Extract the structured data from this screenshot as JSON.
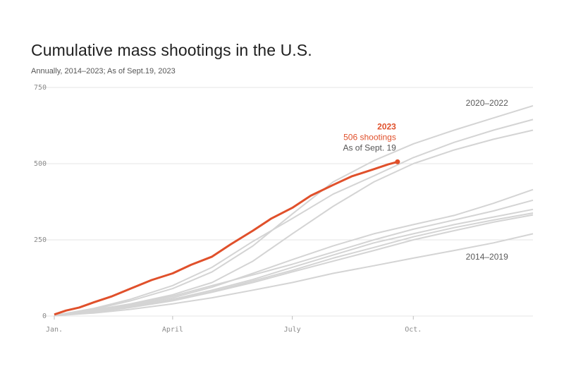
{
  "header": {
    "title": "Cumulative mass shootings in the U.S.",
    "subtitle": "Annually, 2014–2023; As of Sept.19, 2023"
  },
  "colors": {
    "highlight": "#e0502b",
    "background_series": "#d4d4d4",
    "gridline": "#e6e6e6"
  },
  "chart_data": {
    "type": "line",
    "x_unit": "day of year",
    "xlim": [
      1,
      365
    ],
    "ylim": [
      0,
      750
    ],
    "x_ticks": [
      {
        "label": "Jan.",
        "day": 1
      },
      {
        "label": "April",
        "day": 91
      },
      {
        "label": "July",
        "day": 182
      },
      {
        "label": "Oct.",
        "day": 274
      }
    ],
    "y_ticks": [
      0,
      250,
      500,
      750
    ],
    "grid": true,
    "group_labels": [
      {
        "text": "2020–2022",
        "day": 330,
        "value": 690
      },
      {
        "text": "2014–2019",
        "day": 330,
        "value": 185
      }
    ],
    "highlight_annotation": {
      "year": "2023",
      "count_text": "506 shootings",
      "asof_text": "As of Sept. 19"
    },
    "series": [
      {
        "name": "2023",
        "highlight": true,
        "points": [
          [
            1,
            5
          ],
          [
            10,
            18
          ],
          [
            20,
            28
          ],
          [
            31,
            45
          ],
          [
            45,
            65
          ],
          [
            59,
            90
          ],
          [
            75,
            118
          ],
          [
            91,
            140
          ],
          [
            105,
            168
          ],
          [
            121,
            195
          ],
          [
            135,
            235
          ],
          [
            152,
            280
          ],
          [
            166,
            320
          ],
          [
            182,
            355
          ],
          [
            196,
            395
          ],
          [
            213,
            430
          ],
          [
            227,
            458
          ],
          [
            244,
            482
          ],
          [
            255,
            498
          ],
          [
            262,
            506
          ]
        ]
      },
      {
        "points": [
          [
            1,
            2
          ],
          [
            31,
            22
          ],
          [
            59,
            50
          ],
          [
            91,
            90
          ],
          [
            121,
            145
          ],
          [
            152,
            230
          ],
          [
            182,
            335
          ],
          [
            213,
            440
          ],
          [
            244,
            510
          ],
          [
            274,
            565
          ],
          [
            305,
            610
          ],
          [
            335,
            650
          ],
          [
            365,
            690
          ]
        ]
      },
      {
        "points": [
          [
            1,
            2
          ],
          [
            31,
            25
          ],
          [
            59,
            55
          ],
          [
            91,
            100
          ],
          [
            121,
            160
          ],
          [
            152,
            245
          ],
          [
            182,
            320
          ],
          [
            213,
            400
          ],
          [
            244,
            460
          ],
          [
            274,
            520
          ],
          [
            305,
            570
          ],
          [
            335,
            610
          ],
          [
            365,
            645
          ]
        ]
      },
      {
        "points": [
          [
            1,
            2
          ],
          [
            31,
            20
          ],
          [
            59,
            40
          ],
          [
            91,
            70
          ],
          [
            121,
            110
          ],
          [
            152,
            180
          ],
          [
            182,
            270
          ],
          [
            213,
            360
          ],
          [
            244,
            440
          ],
          [
            274,
            500
          ],
          [
            305,
            545
          ],
          [
            335,
            580
          ],
          [
            365,
            610
          ]
        ]
      },
      {
        "points": [
          [
            1,
            1
          ],
          [
            31,
            15
          ],
          [
            59,
            35
          ],
          [
            91,
            60
          ],
          [
            121,
            95
          ],
          [
            152,
            140
          ],
          [
            182,
            185
          ],
          [
            213,
            230
          ],
          [
            244,
            270
          ],
          [
            274,
            300
          ],
          [
            305,
            330
          ],
          [
            335,
            370
          ],
          [
            365,
            415
          ]
        ]
      },
      {
        "points": [
          [
            1,
            1
          ],
          [
            31,
            18
          ],
          [
            59,
            38
          ],
          [
            91,
            65
          ],
          [
            121,
            100
          ],
          [
            152,
            135
          ],
          [
            182,
            170
          ],
          [
            213,
            210
          ],
          [
            244,
            250
          ],
          [
            274,
            285
          ],
          [
            305,
            315
          ],
          [
            335,
            345
          ],
          [
            365,
            380
          ]
        ]
      },
      {
        "points": [
          [
            1,
            1
          ],
          [
            31,
            16
          ],
          [
            59,
            32
          ],
          [
            91,
            55
          ],
          [
            121,
            85
          ],
          [
            152,
            120
          ],
          [
            182,
            160
          ],
          [
            213,
            200
          ],
          [
            244,
            240
          ],
          [
            274,
            270
          ],
          [
            305,
            300
          ],
          [
            335,
            325
          ],
          [
            365,
            350
          ]
        ]
      },
      {
        "points": [
          [
            1,
            1
          ],
          [
            31,
            14
          ],
          [
            59,
            30
          ],
          [
            91,
            52
          ],
          [
            121,
            80
          ],
          [
            152,
            115
          ],
          [
            182,
            150
          ],
          [
            213,
            190
          ],
          [
            244,
            225
          ],
          [
            274,
            260
          ],
          [
            305,
            290
          ],
          [
            335,
            315
          ],
          [
            365,
            338
          ]
        ]
      },
      {
        "points": [
          [
            1,
            1
          ],
          [
            31,
            12
          ],
          [
            59,
            28
          ],
          [
            91,
            50
          ],
          [
            121,
            78
          ],
          [
            152,
            110
          ],
          [
            182,
            145
          ],
          [
            213,
            180
          ],
          [
            244,
            215
          ],
          [
            274,
            250
          ],
          [
            305,
            280
          ],
          [
            335,
            308
          ],
          [
            365,
            332
          ]
        ]
      },
      {
        "points": [
          [
            1,
            1
          ],
          [
            31,
            10
          ],
          [
            59,
            22
          ],
          [
            91,
            40
          ],
          [
            121,
            60
          ],
          [
            152,
            85
          ],
          [
            182,
            110
          ],
          [
            213,
            140
          ],
          [
            244,
            165
          ],
          [
            274,
            190
          ],
          [
            305,
            215
          ],
          [
            335,
            240
          ],
          [
            365,
            270
          ]
        ]
      }
    ]
  }
}
